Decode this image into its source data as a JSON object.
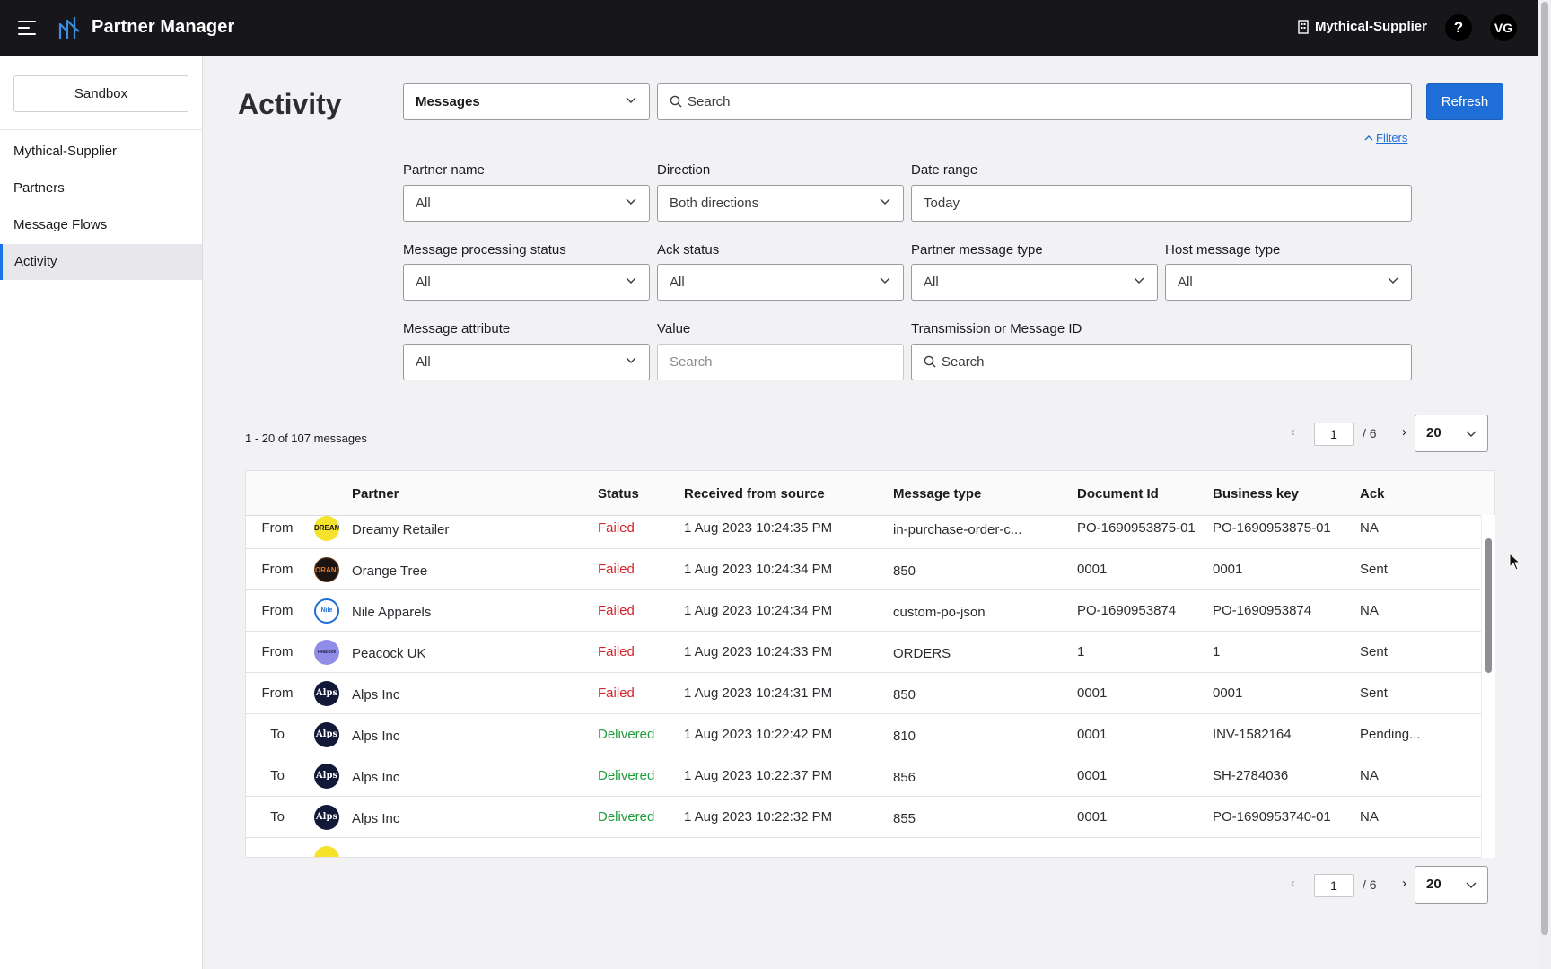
{
  "header": {
    "app_title": "Partner Manager",
    "organization": "Mythical-Supplier",
    "help_label": "?",
    "user_initials": "VG"
  },
  "sidebar": {
    "environment": "Sandbox",
    "items": [
      {
        "label": "Mythical-Supplier"
      },
      {
        "label": "Partners"
      },
      {
        "label": "Message Flows"
      },
      {
        "label": "Activity",
        "active": true
      }
    ]
  },
  "page": {
    "title": "Activity",
    "view_select": "Messages",
    "search_placeholder": "Search",
    "refresh_label": "Refresh",
    "filters_label": "Filters"
  },
  "filters": {
    "partner_name": {
      "label": "Partner name",
      "value": "All"
    },
    "direction": {
      "label": "Direction",
      "value": "Both directions"
    },
    "date_range": {
      "label": "Date range",
      "value": "Today"
    },
    "processing_status": {
      "label": "Message processing status",
      "value": "All"
    },
    "ack_status": {
      "label": "Ack status",
      "value": "All"
    },
    "partner_message_type": {
      "label": "Partner message type",
      "value": "All"
    },
    "host_message_type": {
      "label": "Host message type",
      "value": "All"
    },
    "message_attribute": {
      "label": "Message attribute",
      "value": "All"
    },
    "value": {
      "label": "Value",
      "placeholder": "Search"
    },
    "transmission_id": {
      "label": "Transmission or Message ID",
      "placeholder": "Search"
    }
  },
  "results": {
    "count_text": "1 - 20 of 107 messages",
    "pager": {
      "page": "1",
      "of_text": "/ 6",
      "page_size": "20",
      "prev": "‹",
      "next": "›"
    }
  },
  "table": {
    "columns": [
      "Partner",
      "Status",
      "Received from source",
      "Message type",
      "Document Id",
      "Business key",
      "Ack"
    ],
    "rows": [
      {
        "direction": "From",
        "logo": "DREAMY",
        "partner": "Dreamy Retailer",
        "status": "Failed",
        "received": "1 Aug 2023 10:24:35 PM",
        "message_type": "in-purchase-order-c...",
        "document_id": "PO-1690953875-01",
        "business_key": "PO-1690953875-01",
        "ack": "NA"
      },
      {
        "direction": "From",
        "logo": "ORANGE",
        "partner": "Orange Tree",
        "status": "Failed",
        "received": "1 Aug 2023 10:24:34 PM",
        "message_type": "850",
        "document_id": "0001",
        "business_key": "0001",
        "ack": "Sent"
      },
      {
        "direction": "From",
        "logo": "Nile",
        "partner": "Nile Apparels",
        "status": "Failed",
        "received": "1 Aug 2023 10:24:34 PM",
        "message_type": "custom-po-json",
        "document_id": "PO-1690953874",
        "business_key": "PO-1690953874",
        "ack": "NA"
      },
      {
        "direction": "From",
        "logo": "Peacock",
        "partner": "Peacock UK",
        "status": "Failed",
        "received": "1 Aug 2023 10:24:33 PM",
        "message_type": "ORDERS",
        "document_id": "1",
        "business_key": "1",
        "ack": "Sent"
      },
      {
        "direction": "From",
        "logo": "Alps",
        "partner": "Alps Inc",
        "status": "Failed",
        "received": "1 Aug 2023 10:24:31 PM",
        "message_type": "850",
        "document_id": "0001",
        "business_key": "0001",
        "ack": "Sent"
      },
      {
        "direction": "To",
        "logo": "Alps",
        "partner": "Alps Inc",
        "status": "Delivered",
        "received": "1 Aug 2023 10:22:42 PM",
        "message_type": "810",
        "document_id": "0001",
        "business_key": "INV-1582164",
        "ack": "Pending..."
      },
      {
        "direction": "To",
        "logo": "Alps",
        "partner": "Alps Inc",
        "status": "Delivered",
        "received": "1 Aug 2023 10:22:37 PM",
        "message_type": "856",
        "document_id": "0001",
        "business_key": "SH-2784036",
        "ack": "NA"
      },
      {
        "direction": "To",
        "logo": "Alps",
        "partner": "Alps Inc",
        "status": "Delivered",
        "received": "1 Aug 2023 10:22:32 PM",
        "message_type": "855",
        "document_id": "0001",
        "business_key": "PO-1690953740-01",
        "ack": "NA"
      }
    ]
  },
  "colors": {
    "topbar": "#17171b",
    "accent": "#1f6dd6",
    "failed": "#d4242d",
    "delivered": "#1f9d3a"
  },
  "icons": [
    "menu-icon",
    "logo-icon",
    "building-icon",
    "search-icon",
    "chevron-down-icon",
    "chevron-up-icon",
    "cursor-icon"
  ]
}
